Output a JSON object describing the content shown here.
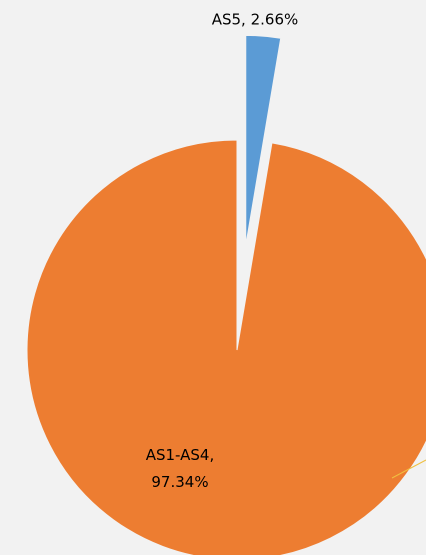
{
  "chart_data": {
    "type": "pie",
    "categories": [
      "AS5",
      "AS1-AS4"
    ],
    "values": [
      2.66,
      97.34
    ],
    "value_labels": [
      "AS5, 2.66%",
      "AS1-AS4, 97.34%"
    ],
    "colors": [
      "#5b9bd5",
      "#ed7d31"
    ],
    "exploded": [
      true,
      false
    ]
  }
}
